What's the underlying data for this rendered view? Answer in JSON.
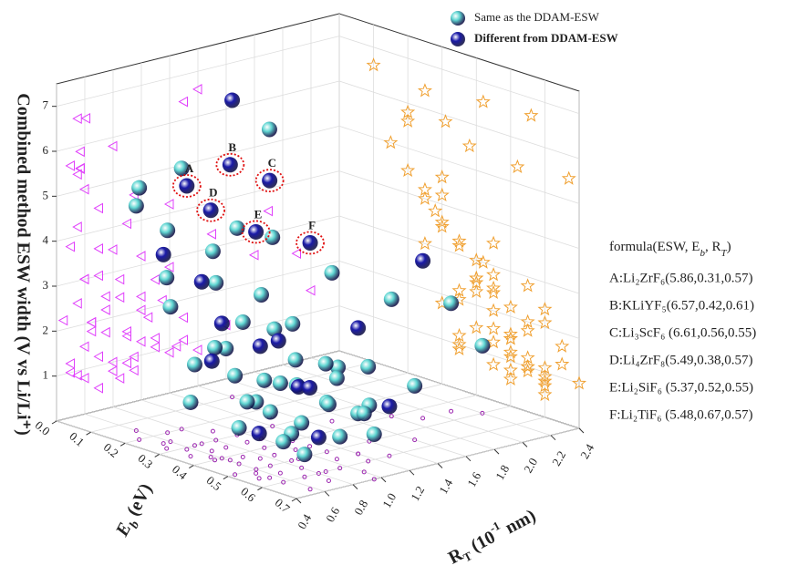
{
  "chart_data": {
    "type": "scatter3d",
    "xlabel": [
      "R",
      "T",
      " (10",
      "-1",
      " nm)"
    ],
    "ylabel": [
      "E",
      "b",
      " (eV)"
    ],
    "zlabel": "Combined method ESW width (V vs Li/Li⁺)",
    "xlim": [
      0.4,
      2.4
    ],
    "ylim": [
      0,
      0.7
    ],
    "zlim": [
      0,
      7.5
    ],
    "xticks": [
      0.4,
      0.6,
      0.8,
      {
        "value": 1,
        "label": "1.0"
      },
      1.2,
      1.4,
      1.6,
      1.8,
      {
        "value": 2,
        "label": "2.0"
      },
      2.2,
      2.4
    ],
    "yticks": [
      {
        "value": 0,
        "label": "0.0"
      },
      0.1,
      0.2,
      0.3,
      0.4,
      0.5,
      0.6,
      0.7
    ],
    "zticks": [
      1,
      2,
      3,
      4,
      5,
      6,
      7
    ],
    "grid": true,
    "projection_colors": {
      "left_wall": "#e040fb",
      "right_wall": "#f0a030",
      "floor": "#9c27b0"
    },
    "series": [
      {
        "name": "Same as the DDAM-ESW",
        "color": "#5fd6d2",
        "x": [
          0.6,
          0.7,
          0.8,
          0.9,
          1.0,
          0.75,
          0.65,
          0.85,
          1.1,
          1.2,
          0.95,
          0.7,
          0.55,
          0.6,
          0.8,
          0.9,
          0.7,
          1.0,
          1.1,
          0.85,
          0.6,
          0.5,
          0.65,
          1.3,
          1.4,
          1.0,
          0.75,
          0.55,
          0.95,
          0.6,
          0.5,
          0.8,
          1.2,
          1.5,
          1.8,
          2.1,
          2.2,
          1.6,
          0.9,
          1.05,
          0.7,
          0.5,
          1.3,
          0.85,
          1.15,
          0.45,
          1.25,
          0.95
        ],
        "y": [
          0.45,
          0.5,
          0.55,
          0.4,
          0.45,
          0.35,
          0.3,
          0.5,
          0.5,
          0.55,
          0.6,
          0.6,
          0.4,
          0.25,
          0.3,
          0.25,
          0.2,
          0.35,
          0.4,
          0.45,
          0.5,
          0.35,
          0.55,
          0.45,
          0.5,
          0.65,
          0.65,
          0.6,
          0.3,
          0.15,
          0.2,
          0.2,
          0.3,
          0.35,
          0.4,
          0.45,
          0.5,
          0.55,
          0.35,
          0.55,
          0.42,
          0.28,
          0.25,
          0.6,
          0.6,
          0.5,
          0.35,
          0.7
        ],
        "z": [
          0.8,
          1.2,
          1.0,
          1.5,
          2.0,
          2.2,
          1.8,
          0.6,
          1.1,
          0.9,
          0.7,
          0.5,
          2.5,
          3.0,
          3.5,
          4.0,
          4.5,
          3.2,
          2.6,
          2.8,
          1.5,
          1.2,
          2.0,
          1.6,
          0.8,
          1.3,
          1.7,
          0.9,
          4.6,
          5.0,
          5.6,
          5.8,
          4.2,
          3.3,
          2.6,
          2.4,
          1.5,
          1.2,
          0.9,
          1.8,
          3.0,
          3.8,
          6.4,
          2.4,
          2.1,
          2.2,
          1.0,
          1.0
        ]
      },
      {
        "name": "Different from DDAM-ESW",
        "color": "#1a1aa8",
        "x": [
          0.57,
          0.61,
          0.55,
          0.57,
          0.55,
          0.57,
          1.4,
          1.9,
          0.6,
          0.75,
          0.9,
          0.65,
          1.1,
          0.8,
          1.3,
          0.55,
          0.7,
          1.0,
          0.5,
          1.2
        ],
        "y": [
          0.31,
          0.42,
          0.56,
          0.38,
          0.52,
          0.67,
          0.1,
          0.45,
          0.4,
          0.45,
          0.5,
          0.35,
          0.45,
          0.6,
          0.6,
          0.25,
          0.3,
          0.4,
          0.55,
          0.55
        ],
        "z": [
          5.86,
          6.57,
          6.61,
          5.49,
          5.37,
          5.48,
          6.6,
          3.5,
          3.0,
          2.5,
          1.6,
          2.0,
          1.3,
          0.8,
          1.1,
          4.2,
          3.6,
          2.3,
          1.0,
          2.8
        ]
      }
    ],
    "formula_header": [
      "formula(ESW, E",
      "b",
      ", R",
      "T",
      ")"
    ],
    "annotations": [
      {
        "label": "A",
        "text": "A:Li₂ZrF₆(5.86,0.31,0.57)",
        "x": 0.57,
        "y": 0.31,
        "z": 5.86
      },
      {
        "label": "B",
        "text": "B:KLiYF₅(6.57,0.42,0.61)",
        "x": 0.61,
        "y": 0.42,
        "z": 6.57
      },
      {
        "label": "C",
        "text": "C:Li₃ScF₆ (6.61,0.56,0.55)",
        "x": 0.55,
        "y": 0.56,
        "z": 6.61
      },
      {
        "label": "D",
        "text": "D:Li₄ZrF₈(5.49,0.38,0.57)",
        "x": 0.57,
        "y": 0.38,
        "z": 5.49
      },
      {
        "label": "E",
        "text": "E:Li₂SiF₆ (5.37,0.52,0.55)",
        "x": 0.55,
        "y": 0.52,
        "z": 5.37
      },
      {
        "label": "F",
        "text": "F:Li₂TiF₆ (5.48,0.67,0.57)",
        "x": 0.57,
        "y": 0.67,
        "z": 5.48
      }
    ]
  }
}
